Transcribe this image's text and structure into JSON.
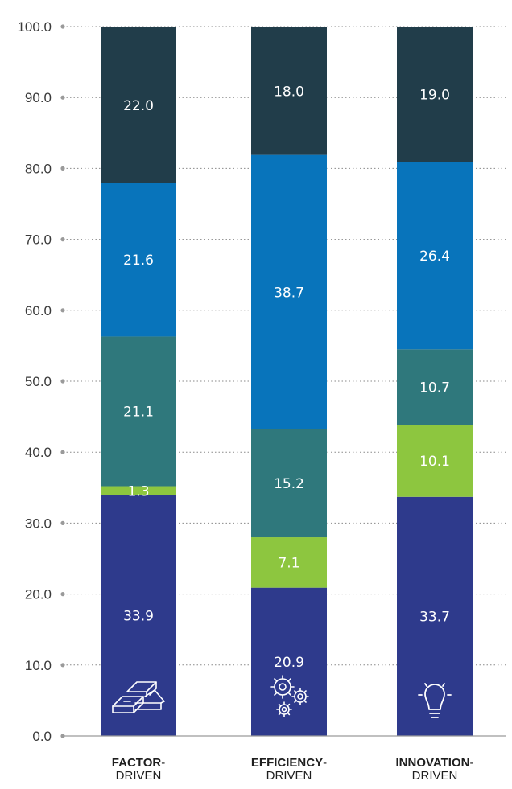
{
  "chart_data": {
    "type": "bar",
    "stacked": true,
    "title": "",
    "xlabel": "",
    "ylabel": "",
    "ylim": [
      0,
      100
    ],
    "yticks": [
      "0.0",
      "10.0",
      "20.0",
      "30.0",
      "40.0",
      "50.0",
      "60.0",
      "70.0",
      "80.0",
      "90.0",
      "100.0"
    ],
    "grid": true,
    "categories": [
      {
        "bold": "FACTOR",
        "suffix": "-",
        "second": "DRIVEN",
        "icon": "gold-bars-icon"
      },
      {
        "bold": "EFFICIENCY",
        "suffix": "-",
        "second": "DRIVEN",
        "icon": "gears-icon"
      },
      {
        "bold": "INNOVATION",
        "suffix": "-",
        "second": "DRIVEN",
        "icon": "lightbulb-icon"
      }
    ],
    "series": [
      {
        "color": "#2e3a8c",
        "values": [
          33.9,
          20.9,
          33.7
        ],
        "labels": [
          "33.9",
          "20.9",
          "33.7"
        ]
      },
      {
        "color": "#8dc63f",
        "values": [
          1.3,
          7.1,
          10.1
        ],
        "labels": [
          "1.3",
          "7.1",
          "10.1"
        ]
      },
      {
        "color": "#2f787c",
        "values": [
          21.1,
          15.2,
          10.7
        ],
        "labels": [
          "21.1",
          "15.2",
          "10.7"
        ]
      },
      {
        "color": "#0874bb",
        "values": [
          21.6,
          38.7,
          26.4
        ],
        "labels": [
          "21.6",
          "38.7",
          "26.4"
        ]
      },
      {
        "color": "#213d4a",
        "values": [
          22.0,
          18.0,
          19.0
        ],
        "labels": [
          "22.0",
          "18.0",
          "19.0"
        ]
      }
    ]
  }
}
